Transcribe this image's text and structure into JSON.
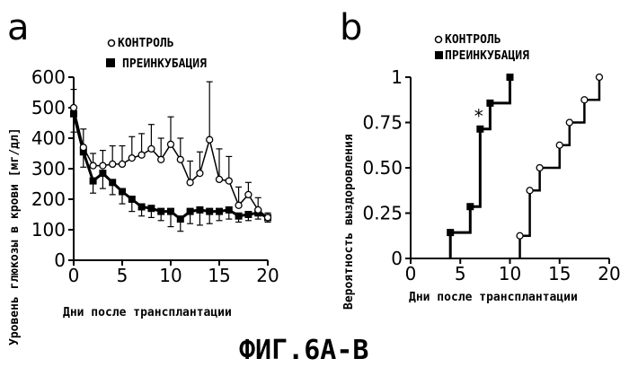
{
  "figure_caption": "ФИГ.6А-В",
  "chart_data": [
    {
      "panel": "a",
      "type": "line",
      "legend": [
        "КОНТРОЛЬ",
        "ПРЕИНКУБАЦИЯ"
      ],
      "xlabel": "Дни после трансплантации",
      "ylabel": "Уровень глюкозы в крови [мг/дл]",
      "xlim": [
        0,
        20
      ],
      "ylim": [
        0,
        600
      ],
      "xticks": [
        0,
        5,
        10,
        15,
        20
      ],
      "yticks": [
        0,
        100,
        200,
        300,
        400,
        500,
        600
      ],
      "x": [
        0,
        1,
        2,
        3,
        4,
        5,
        6,
        7,
        8,
        9,
        10,
        11,
        12,
        13,
        14,
        15,
        16,
        17,
        18,
        19,
        20
      ],
      "series": [
        {
          "name": "КОНТРОЛЬ",
          "marker": "open-circle",
          "values": [
            500,
            370,
            310,
            310,
            315,
            315,
            335,
            345,
            365,
            330,
            380,
            330,
            255,
            285,
            395,
            265,
            260,
            180,
            215,
            165,
            140
          ],
          "error_plus": [
            60,
            60,
            40,
            50,
            60,
            60,
            70,
            70,
            80,
            70,
            90,
            70,
            70,
            70,
            190,
            100,
            80,
            60,
            40,
            40,
            15
          ]
        },
        {
          "name": "ПРЕИНКУБАЦИЯ",
          "marker": "filled-square",
          "values": [
            480,
            355,
            260,
            285,
            255,
            225,
            200,
            175,
            170,
            160,
            160,
            135,
            160,
            165,
            160,
            160,
            165,
            145,
            150,
            155,
            140
          ],
          "error_minus": [
            60,
            50,
            40,
            50,
            40,
            40,
            40,
            30,
            30,
            30,
            50,
            40,
            40,
            50,
            40,
            30,
            30,
            20,
            20,
            20,
            15
          ]
        }
      ]
    },
    {
      "panel": "b",
      "type": "line",
      "step": true,
      "legend": [
        "КОНТРОЛЬ",
        "ПРЕИНКУБАЦИЯ"
      ],
      "xlabel": "Дни после трансплантации",
      "ylabel": "Вероятность выздоровления",
      "xlim": [
        0,
        20
      ],
      "ylim": [
        0,
        1
      ],
      "xticks": [
        0,
        5,
        10,
        15,
        20
      ],
      "yticks": [
        "0",
        "0.25",
        "0.50",
        "0.75",
        "1"
      ],
      "annotation": "*",
      "series": [
        {
          "name": "КОНТРОЛЬ",
          "marker": "open-circle",
          "points": [
            [
              11,
              0.125
            ],
            [
              12,
              0.375
            ],
            [
              13,
              0.5
            ],
            [
              15,
              0.625
            ],
            [
              16,
              0.75
            ],
            [
              17.5,
              0.875
            ],
            [
              19,
              1.0
            ]
          ]
        },
        {
          "name": "ПРЕИНКУБАЦИЯ",
          "marker": "filled-square",
          "points": [
            [
              4,
              0.143
            ],
            [
              6,
              0.286
            ],
            [
              7,
              0.714
            ],
            [
              8,
              0.857
            ],
            [
              10,
              1.0
            ]
          ]
        }
      ]
    }
  ]
}
